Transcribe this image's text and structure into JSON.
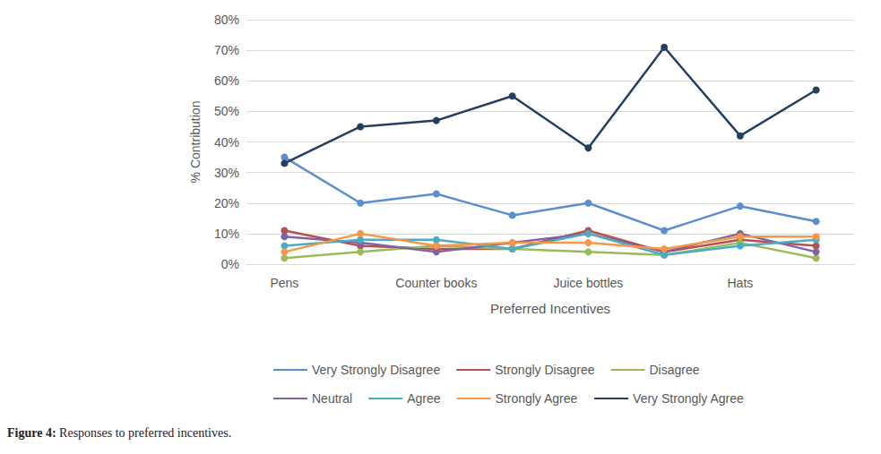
{
  "chart_data": {
    "type": "line",
    "caption": "Figure 4: Responses to preferred incentives.",
    "x_label": "Preferred Incentives",
    "y_label": "% Contribution",
    "categories": [
      "Pens",
      null,
      "Counter books",
      null,
      "Juice bottles",
      null,
      "Hats",
      null
    ],
    "ylim": [
      0,
      80
    ],
    "yticks": [
      {
        "value": 0,
        "label": "0%"
      },
      {
        "value": 10,
        "label": "10%"
      },
      {
        "value": 20,
        "label": "20%"
      },
      {
        "value": 30,
        "label": "30%"
      },
      {
        "value": 40,
        "label": "40%"
      },
      {
        "value": 50,
        "label": "50%"
      },
      {
        "value": 60,
        "label": "60%"
      },
      {
        "value": 70,
        "label": "70%"
      },
      {
        "value": 80,
        "label": "80%"
      }
    ],
    "grid": true,
    "legend": "bottom",
    "marker": "circle",
    "series": [
      {
        "name": "Very Strongly Disagree",
        "color": "#5b8fd0",
        "values": [
          35,
          20,
          23,
          16,
          20,
          11,
          19,
          14
        ]
      },
      {
        "name": "Strongly Disagree",
        "color": "#b6514f",
        "values": [
          11,
          6,
          5,
          5,
          11,
          4,
          8,
          6
        ]
      },
      {
        "name": "Disagree",
        "color": "#9bbb59",
        "values": [
          2,
          4,
          6,
          5,
          4,
          3,
          7,
          2
        ]
      },
      {
        "name": "Neutral",
        "color": "#8064a2",
        "values": [
          9,
          7,
          4,
          7,
          10,
          4,
          10,
          4
        ]
      },
      {
        "name": "Agree",
        "color": "#4bacc6",
        "values": [
          6,
          8,
          8,
          5,
          10,
          3,
          6,
          8
        ]
      },
      {
        "name": "Strongly Agree",
        "color": "#f79646",
        "values": [
          4,
          10,
          6,
          7,
          7,
          5,
          9,
          9
        ]
      },
      {
        "name": "Very Strongly Agree",
        "color": "#243f60",
        "values": [
          33,
          45,
          47,
          55,
          38,
          71,
          42,
          57
        ]
      }
    ]
  }
}
